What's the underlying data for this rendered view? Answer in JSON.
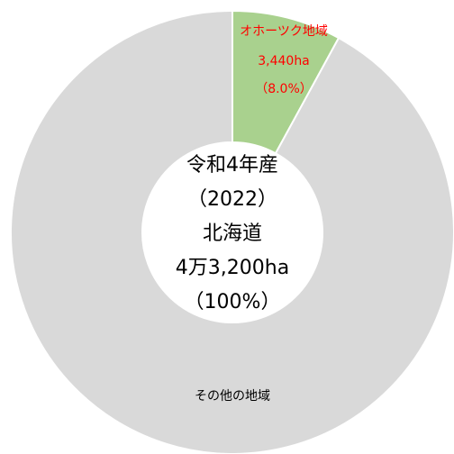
{
  "chart_data": {
    "type": "pie",
    "donut": true,
    "categories": [
      "オホーツク地域",
      "その他の地域"
    ],
    "values": [
      3440,
      39760
    ],
    "value_labels": [
      "3,440ha",
      null
    ],
    "percent_labels": [
      "（8.0%）",
      null
    ],
    "colors": [
      "#a9d18e",
      "#d9d9d9"
    ],
    "center_text": [
      "令和4年産",
      "（2022）",
      "北海道",
      "4万3,200ha",
      "（100%）"
    ]
  }
}
